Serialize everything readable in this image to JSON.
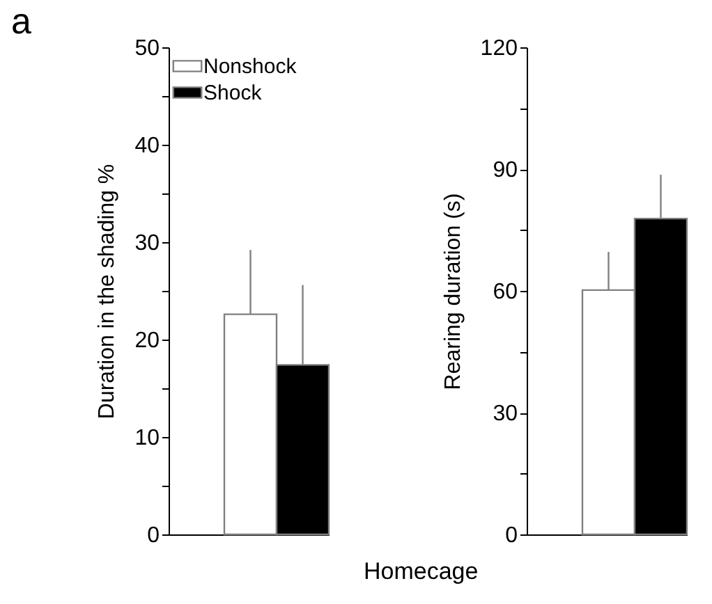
{
  "chart_data": [
    {
      "type": "bar",
      "ylabel": "Duration in the shading %",
      "xlabel": "Homecage",
      "annotations": [
        "a"
      ],
      "categories": [
        null
      ],
      "legend": "top left",
      "series": [
        {
          "name": "Nonshock",
          "color": "#ffffff",
          "values": [
            22.6
          ],
          "errors": [
            [
              22.6,
              29.2
            ]
          ]
        },
        {
          "name": "Shock",
          "color": "#000000",
          "values": [
            17.4
          ],
          "errors": [
            [
              17.4,
              25.6
            ]
          ]
        }
      ],
      "ylim": [
        0,
        50
      ],
      "yticks": [
        0,
        {
          "value": 5,
          "label": null
        },
        10,
        {
          "value": 15,
          "label": null
        },
        20,
        {
          "value": 25,
          "label": null
        },
        30,
        {
          "value": 35,
          "label": null
        },
        40,
        {
          "value": 45,
          "label": null
        },
        50
      ]
    },
    {
      "type": "bar",
      "ylabel": "Rearing duration (s)",
      "categories": [
        null
      ],
      "series": [
        {
          "color": "#ffffff",
          "values": [
            60.2
          ],
          "errors": [
            [
              60.2,
              69.6
            ]
          ]
        },
        {
          "color": "#000000",
          "values": [
            77.8
          ],
          "errors": [
            [
              77.8,
              88.6
            ]
          ]
        }
      ],
      "ylim": [
        0,
        120
      ],
      "yticks": [
        0,
        {
          "value": 15,
          "label": null
        },
        30,
        {
          "value": 45,
          "label": null
        },
        60,
        {
          "value": 75,
          "label": null
        },
        90,
        {
          "value": 105,
          "label": null
        },
        120
      ]
    }
  ]
}
